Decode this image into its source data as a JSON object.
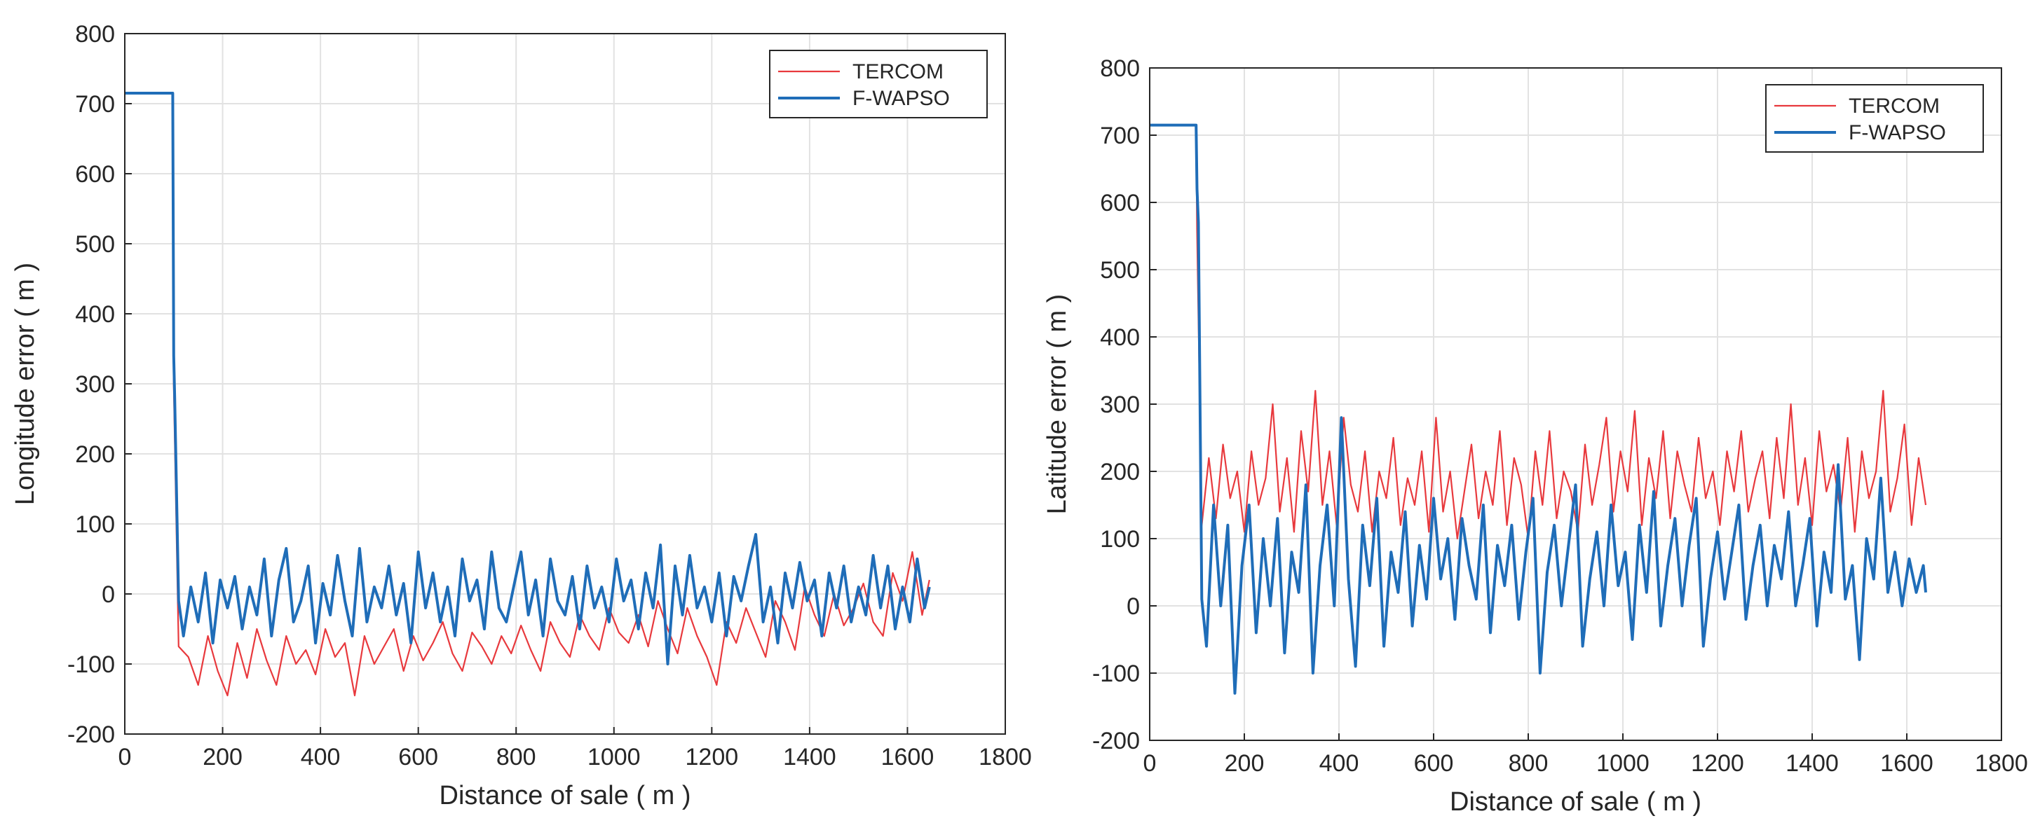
{
  "colors": {
    "tercom": "#e8393d",
    "fwapso": "#1f6db8",
    "grid": "#e2e2e2",
    "axis": "#262626"
  },
  "chart_data": [
    {
      "type": "line",
      "title": "",
      "xlabel": "Distance of sale ( m )",
      "ylabel": "Longitude error ( m )",
      "xlim": [
        0,
        1800
      ],
      "ylim": [
        -200,
        800
      ],
      "xticks": [
        "0",
        "200",
        "400",
        "600",
        "800",
        "1000",
        "1200",
        "1400",
        "1600",
        "1800"
      ],
      "yticks": [
        "-200",
        "-100",
        "0",
        "100",
        "200",
        "300",
        "400",
        "500",
        "600",
        "700",
        "800"
      ],
      "grid": true,
      "legend_position": "top-right",
      "series": [
        {
          "name": "TERCOM",
          "color": "#e8393d",
          "x": [
            0,
            98,
            100,
            110,
            130,
            150,
            170,
            190,
            210,
            230,
            250,
            270,
            290,
            310,
            330,
            350,
            370,
            390,
            410,
            430,
            450,
            470,
            490,
            510,
            530,
            550,
            570,
            590,
            610,
            630,
            650,
            670,
            690,
            710,
            730,
            750,
            770,
            790,
            810,
            830,
            850,
            870,
            890,
            910,
            930,
            950,
            970,
            990,
            1010,
            1030,
            1050,
            1070,
            1090,
            1110,
            1130,
            1150,
            1170,
            1190,
            1210,
            1230,
            1250,
            1270,
            1290,
            1310,
            1330,
            1350,
            1370,
            1390,
            1410,
            1430,
            1450,
            1470,
            1490,
            1510,
            1530,
            1550,
            1570,
            1590,
            1610,
            1630,
            1645
          ],
          "values": [
            715,
            715,
            300,
            -75,
            -90,
            -130,
            -60,
            -110,
            -145,
            -70,
            -120,
            -50,
            -95,
            -130,
            -60,
            -100,
            -80,
            -115,
            -50,
            -90,
            -70,
            -145,
            -60,
            -100,
            -75,
            -50,
            -110,
            -60,
            -95,
            -70,
            -40,
            -85,
            -110,
            -55,
            -75,
            -100,
            -60,
            -85,
            -45,
            -80,
            -110,
            -40,
            -70,
            -90,
            -30,
            -60,
            -80,
            -20,
            -55,
            -70,
            -30,
            -75,
            -10,
            -50,
            -85,
            -20,
            -60,
            -90,
            -130,
            -40,
            -70,
            -20,
            -55,
            -90,
            -10,
            -40,
            -80,
            10,
            -30,
            -60,
            0,
            -45,
            -20,
            15,
            -40,
            -60,
            30,
            -10,
            60,
            -30,
            20
          ]
        },
        {
          "name": "F-WAPSO",
          "color": "#1f6db8",
          "x": [
            0,
            98,
            100,
            102,
            110,
            120,
            135,
            150,
            165,
            180,
            195,
            210,
            225,
            240,
            255,
            270,
            285,
            300,
            315,
            330,
            345,
            360,
            375,
            390,
            405,
            420,
            435,
            450,
            465,
            480,
            495,
            510,
            525,
            540,
            555,
            570,
            585,
            600,
            615,
            630,
            645,
            660,
            675,
            690,
            705,
            720,
            735,
            750,
            765,
            780,
            795,
            810,
            825,
            840,
            855,
            870,
            885,
            900,
            915,
            930,
            945,
            960,
            975,
            990,
            1005,
            1020,
            1035,
            1050,
            1065,
            1080,
            1095,
            1110,
            1125,
            1140,
            1155,
            1170,
            1185,
            1200,
            1215,
            1230,
            1245,
            1260,
            1275,
            1290,
            1305,
            1320,
            1335,
            1350,
            1365,
            1380,
            1395,
            1410,
            1425,
            1440,
            1455,
            1470,
            1485,
            1500,
            1515,
            1530,
            1545,
            1560,
            1575,
            1590,
            1605,
            1620,
            1635,
            1645
          ],
          "values": [
            715,
            715,
            340,
            280,
            -10,
            -60,
            10,
            -40,
            30,
            -70,
            20,
            -20,
            25,
            -50,
            10,
            -30,
            50,
            -60,
            20,
            65,
            -40,
            -10,
            40,
            -70,
            15,
            -30,
            55,
            -10,
            -60,
            65,
            -40,
            10,
            -20,
            40,
            -30,
            15,
            -70,
            60,
            -20,
            30,
            -40,
            10,
            -60,
            50,
            -10,
            20,
            -50,
            60,
            -20,
            -40,
            10,
            60,
            -30,
            20,
            -60,
            50,
            -10,
            -30,
            25,
            -50,
            40,
            -20,
            10,
            -40,
            50,
            -10,
            20,
            -50,
            30,
            -20,
            70,
            -100,
            40,
            -30,
            55,
            -20,
            10,
            -40,
            30,
            -60,
            25,
            -10,
            40,
            85,
            -40,
            10,
            -70,
            30,
            -20,
            45,
            -10,
            20,
            -60,
            30,
            -20,
            40,
            -40,
            10,
            -30,
            55,
            -20,
            40,
            -50,
            10,
            -40,
            50,
            -20,
            10
          ]
        }
      ]
    },
    {
      "type": "line",
      "title": "",
      "xlabel": "Distance of sale ( m )",
      "ylabel": "Latitude error ( m )",
      "xlim": [
        0,
        1800
      ],
      "ylim": [
        -200,
        800
      ],
      "xticks": [
        "0",
        "200",
        "400",
        "600",
        "800",
        "1000",
        "1200",
        "1400",
        "1600",
        "1800"
      ],
      "yticks": [
        "-200",
        "-100",
        "0",
        "100",
        "200",
        "300",
        "400",
        "500",
        "600",
        "700",
        "800"
      ],
      "grid": true,
      "legend_position": "top-right",
      "series": [
        {
          "name": "TERCOM",
          "color": "#e8393d",
          "x": [
            0,
            98,
            100,
            110,
            125,
            140,
            155,
            170,
            185,
            200,
            215,
            230,
            245,
            260,
            275,
            290,
            305,
            320,
            335,
            350,
            365,
            380,
            395,
            410,
            425,
            440,
            455,
            470,
            485,
            500,
            515,
            530,
            545,
            560,
            575,
            590,
            605,
            620,
            635,
            650,
            665,
            680,
            695,
            710,
            725,
            740,
            755,
            770,
            785,
            800,
            815,
            830,
            845,
            860,
            875,
            890,
            905,
            920,
            935,
            950,
            965,
            980,
            995,
            1010,
            1025,
            1040,
            1055,
            1070,
            1085,
            1100,
            1115,
            1130,
            1145,
            1160,
            1175,
            1190,
            1205,
            1220,
            1235,
            1250,
            1265,
            1280,
            1295,
            1310,
            1325,
            1340,
            1355,
            1370,
            1385,
            1400,
            1415,
            1430,
            1445,
            1460,
            1475,
            1490,
            1505,
            1520,
            1535,
            1550,
            1565,
            1580,
            1595,
            1610,
            1625,
            1640
          ],
          "values": [
            715,
            715,
            560,
            120,
            220,
            130,
            240,
            160,
            200,
            110,
            230,
            150,
            190,
            300,
            140,
            220,
            110,
            260,
            170,
            320,
            150,
            230,
            120,
            280,
            180,
            140,
            230,
            110,
            200,
            160,
            250,
            120,
            190,
            150,
            230,
            110,
            280,
            140,
            200,
            100,
            170,
            240,
            130,
            200,
            150,
            260,
            120,
            220,
            180,
            100,
            230,
            150,
            260,
            130,
            200,
            170,
            110,
            240,
            150,
            210,
            280,
            140,
            230,
            170,
            290,
            120,
            220,
            160,
            260,
            130,
            230,
            180,
            140,
            250,
            160,
            200,
            120,
            230,
            170,
            260,
            140,
            190,
            230,
            130,
            250,
            160,
            300,
            150,
            220,
            120,
            260,
            170,
            210,
            140,
            250,
            110,
            230,
            160,
            200,
            320,
            140,
            190,
            270,
            120,
            220,
            150
          ]
        },
        {
          "name": "F-WAPSO",
          "color": "#1f6db8",
          "x": [
            0,
            98,
            100,
            103,
            110,
            120,
            135,
            150,
            165,
            180,
            195,
            210,
            225,
            240,
            255,
            270,
            285,
            300,
            315,
            330,
            345,
            360,
            375,
            390,
            405,
            420,
            435,
            450,
            465,
            480,
            495,
            510,
            525,
            540,
            555,
            570,
            585,
            600,
            615,
            630,
            645,
            660,
            675,
            690,
            705,
            720,
            735,
            750,
            765,
            780,
            795,
            810,
            825,
            840,
            855,
            870,
            885,
            900,
            915,
            930,
            945,
            960,
            975,
            990,
            1005,
            1020,
            1035,
            1050,
            1065,
            1080,
            1095,
            1110,
            1125,
            1140,
            1155,
            1170,
            1185,
            1200,
            1215,
            1230,
            1245,
            1260,
            1275,
            1290,
            1305,
            1320,
            1335,
            1350,
            1365,
            1380,
            1395,
            1410,
            1425,
            1440,
            1455,
            1470,
            1485,
            1500,
            1515,
            1530,
            1545,
            1560,
            1575,
            1590,
            1605,
            1620,
            1635,
            1640
          ],
          "values": [
            715,
            715,
            620,
            570,
            10,
            -60,
            150,
            0,
            120,
            -130,
            60,
            150,
            -40,
            100,
            0,
            130,
            -70,
            80,
            20,
            180,
            -100,
            60,
            150,
            0,
            280,
            40,
            -90,
            120,
            30,
            160,
            -60,
            80,
            20,
            140,
            -30,
            90,
            10,
            160,
            40,
            100,
            -20,
            130,
            60,
            10,
            150,
            -40,
            90,
            30,
            120,
            -20,
            80,
            160,
            -100,
            50,
            120,
            0,
            90,
            180,
            -60,
            40,
            110,
            0,
            150,
            30,
            80,
            -50,
            120,
            20,
            170,
            -30,
            60,
            130,
            0,
            90,
            160,
            -60,
            40,
            110,
            10,
            80,
            150,
            -20,
            60,
            120,
            0,
            90,
            40,
            140,
            0,
            60,
            130,
            -30,
            80,
            20,
            210,
            10,
            60,
            -80,
            100,
            40,
            190,
            20,
            80,
            0,
            70,
            20,
            60,
            20
          ]
        }
      ]
    }
  ]
}
